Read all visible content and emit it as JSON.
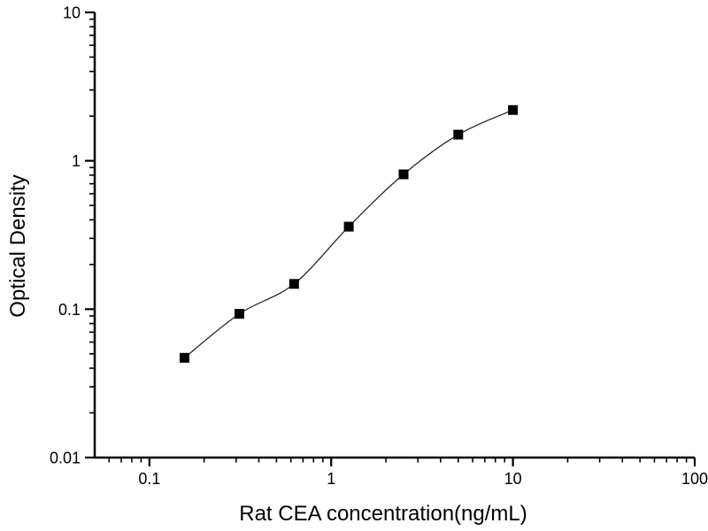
{
  "chart_data": {
    "type": "scatter",
    "title": "",
    "xlabel": "Rat CEA concentration(ng/mL)",
    "ylabel": "Optical Density",
    "x_scale": "log",
    "y_scale": "log",
    "xlim": [
      0.05,
      100
    ],
    "ylim": [
      0.01,
      10
    ],
    "x_major_ticks": [
      0.1,
      1,
      10,
      100
    ],
    "x_tick_labels": [
      "0.1",
      "1",
      "10",
      "100"
    ],
    "y_major_ticks": [
      0.01,
      0.1,
      1,
      10
    ],
    "y_tick_labels": [
      "0.01",
      "0.1",
      "1",
      "10"
    ],
    "grid": false,
    "legend": "none",
    "series": [
      {
        "name": "rat-cea-standard-curve",
        "marker": "filled-square",
        "x": [
          0.156,
          0.3125,
          0.625,
          1.25,
          2.5,
          5,
          10
        ],
        "y": [
          0.047,
          0.093,
          0.148,
          0.36,
          0.81,
          1.5,
          2.2
        ],
        "fit_line": "smooth-sigmoid"
      }
    ],
    "colors": {
      "background": "#ffffff",
      "axis": "#000000",
      "marker": "#000000",
      "curve": "#1c1c1c",
      "text": "#000000"
    }
  }
}
